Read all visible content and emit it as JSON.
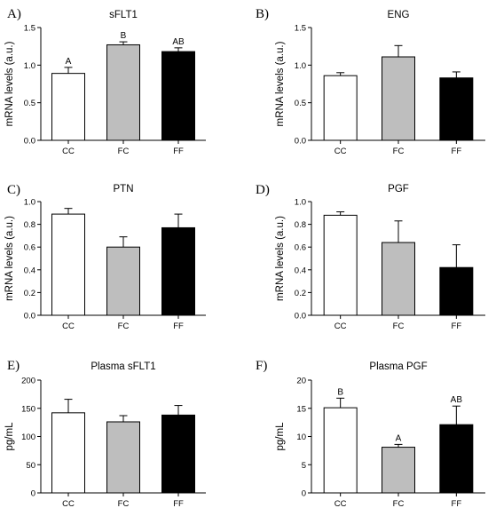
{
  "chart_data": [
    {
      "panel": "A)",
      "type": "bar",
      "title": "sFLT1",
      "ylabel": "mRNA levels (a.u.)",
      "categories": [
        "CC",
        "FC",
        "FF"
      ],
      "values": [
        0.89,
        1.27,
        1.18
      ],
      "errors": [
        0.08,
        0.04,
        0.05
      ],
      "significance": [
        "A",
        "B",
        "AB"
      ],
      "ylim": [
        0,
        1.5
      ],
      "yticks": [
        0,
        0.5,
        1.0,
        1.5
      ],
      "ytick_labels": [
        "0.0",
        "0.5",
        "1.0",
        "1.5"
      ]
    },
    {
      "panel": "B)",
      "type": "bar",
      "title": "ENG",
      "ylabel": "mRNA levels (a.u.)",
      "categories": [
        "CC",
        "FC",
        "FF"
      ],
      "values": [
        0.86,
        1.11,
        0.83
      ],
      "errors": [
        0.04,
        0.15,
        0.08
      ],
      "significance": [
        "",
        "",
        ""
      ],
      "ylim": [
        0,
        1.5
      ],
      "yticks": [
        0,
        0.5,
        1.0,
        1.5
      ],
      "ytick_labels": [
        "0.0",
        "0.5",
        "1.0",
        "1.5"
      ]
    },
    {
      "panel": "C)",
      "type": "bar",
      "title": "PTN",
      "ylabel": "mRNA levels (a.u.)",
      "categories": [
        "CC",
        "FC",
        "FF"
      ],
      "values": [
        0.89,
        0.6,
        0.77
      ],
      "errors": [
        0.05,
        0.09,
        0.12
      ],
      "significance": [
        "",
        "",
        ""
      ],
      "ylim": [
        0,
        1.0
      ],
      "yticks": [
        0,
        0.2,
        0.4,
        0.6,
        0.8,
        1.0
      ],
      "ytick_labels": [
        "0.0",
        "0.2",
        "0.4",
        "0.6",
        "0.8",
        "1.0"
      ]
    },
    {
      "panel": "D)",
      "type": "bar",
      "title": "PGF",
      "ylabel": "mRNA levels (a.u.)",
      "categories": [
        "CC",
        "FC",
        "FF"
      ],
      "values": [
        0.88,
        0.64,
        0.42
      ],
      "errors": [
        0.03,
        0.19,
        0.2
      ],
      "significance": [
        "",
        "",
        ""
      ],
      "ylim": [
        0,
        1.0
      ],
      "yticks": [
        0,
        0.2,
        0.4,
        0.6,
        0.8,
        1.0
      ],
      "ytick_labels": [
        "0.0",
        "0.2",
        "0.4",
        "0.6",
        "0.8",
        "1.0"
      ]
    },
    {
      "panel": "E)",
      "type": "bar",
      "title": "Plasma sFLT1",
      "ylabel": "pg/mL",
      "categories": [
        "CC",
        "FC",
        "FF"
      ],
      "values": [
        142,
        126,
        138
      ],
      "errors": [
        24,
        11,
        17
      ],
      "significance": [
        "",
        "",
        ""
      ],
      "ylim": [
        0,
        200
      ],
      "yticks": [
        0,
        50,
        100,
        150,
        200
      ],
      "ytick_labels": [
        "0",
        "50",
        "100",
        "150",
        "200"
      ]
    },
    {
      "panel": "F)",
      "type": "bar",
      "title": "Plasma PGF",
      "ylabel": "pg/mL",
      "categories": [
        "CC",
        "FC",
        "FF"
      ],
      "values": [
        15.1,
        8.1,
        12.1
      ],
      "errors": [
        1.7,
        0.5,
        3.3
      ],
      "significance": [
        "B",
        "A",
        "AB"
      ],
      "ylim": [
        0,
        20
      ],
      "yticks": [
        0,
        5,
        10,
        15,
        20
      ],
      "ytick_labels": [
        "0",
        "5",
        "10",
        "15",
        "20"
      ]
    }
  ],
  "bar_colors": [
    "#ffffff",
    "#bebebe",
    "#000000"
  ]
}
